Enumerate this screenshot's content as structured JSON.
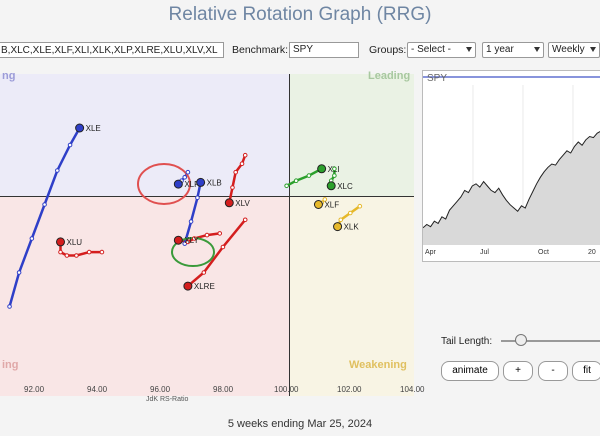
{
  "title": "Relative Rotation Graph (RRG)",
  "toolbar": {
    "symbols_value": "B,XLC,XLE,XLF,XLI,XLK,XLP,XLRE,XLU,XLV,XL",
    "benchmark_label": "Benchmark:",
    "benchmark_value": "SPY",
    "groups_label": "Groups:",
    "groups_value": "- Select -",
    "period_value": "1 year",
    "frequency_value": "Weekly"
  },
  "quadrants": {
    "leading": "Leading",
    "lagging_partial": "ing",
    "improving_partial": "ng",
    "weakening": "Weakening"
  },
  "colors": {
    "leading_bg": "#eaf2e4",
    "improving_bg": "#ecebf8",
    "lagging_bg": "#f9e6e6",
    "weakening_bg": "#f8f4e4",
    "blue": "#2f3fc8",
    "red": "#d41e1e",
    "green": "#2ca02c",
    "yellow": "#e6b82a",
    "circle_red": "#e05050",
    "circle_green": "#3a9a3a"
  },
  "chart_data": {
    "type": "scatter",
    "xlabel": "JdK RS-Ratio",
    "ylabel": "",
    "xlim": [
      91,
      104
    ],
    "x_ticks": [
      "92.00",
      "94.00",
      "96.00",
      "98.00",
      "100.00",
      "102.00",
      "104.00"
    ],
    "series": [
      {
        "name": "XLE",
        "color": "blue",
        "x": [
          91.3,
          91.6,
          92.0,
          92.4,
          92.8,
          93.2,
          93.5
        ],
        "y": [
          93.5,
          95.5,
          97.5,
          99.5,
          101.5,
          103.0,
          104.0
        ]
      },
      {
        "name": "XLF",
        "color": "blue",
        "x": [
          96.9,
          96.8,
          96.7,
          96.6
        ],
        "y": [
          101.4,
          101.1,
          100.9,
          100.7
        ]
      },
      {
        "name": "XLB",
        "color": "blue",
        "x": [
          96.8,
          97.0,
          97.2,
          97.3
        ],
        "y": [
          97.2,
          98.5,
          99.9,
          100.8
        ]
      },
      {
        "name": "XLV",
        "color": "red",
        "x": [
          98.7,
          98.6,
          98.4,
          98.3,
          98.2
        ],
        "y": [
          102.4,
          101.9,
          101.4,
          100.5,
          99.6
        ]
      },
      {
        "name": "XLI",
        "color": "green",
        "x": [
          100.0,
          100.3,
          100.7,
          101.1
        ],
        "y": [
          100.6,
          100.9,
          101.2,
          101.6
        ]
      },
      {
        "name": "XLC",
        "color": "green",
        "x": [
          101.5,
          101.5,
          101.4,
          101.4
        ],
        "y": [
          101.6,
          101.2,
          100.9,
          100.6
        ]
      },
      {
        "name": "XLF",
        "color": "yellow",
        "x": [
          101.2,
          101.1,
          101.0
        ],
        "y": [
          99.8,
          99.6,
          99.5
        ]
      },
      {
        "name": "XLK",
        "color": "yellow",
        "x": [
          102.3,
          102.0,
          101.7,
          101.6
        ],
        "y": [
          99.4,
          99.0,
          98.6,
          98.2
        ]
      },
      {
        "name": "XLU",
        "color": "red",
        "x": [
          94.2,
          93.8,
          93.4,
          93.1,
          92.9,
          92.9
        ],
        "y": [
          96.7,
          96.7,
          96.5,
          96.5,
          96.7,
          97.3
        ]
      },
      {
        "name": "XLY",
        "color": "red",
        "x": [
          97.9,
          97.5,
          97.1,
          96.9,
          96.6
        ],
        "y": [
          97.8,
          97.7,
          97.5,
          97.3,
          97.4
        ]
      },
      {
        "name": "XLRE",
        "color": "red",
        "x": [
          98.7,
          98.0,
          97.4,
          96.9
        ],
        "y": [
          98.6,
          97.0,
          95.5,
          94.7
        ]
      }
    ],
    "spy_series": {
      "label": "SPY",
      "x_ticks": [
        "Apr",
        "Jul",
        "Oct",
        "20"
      ],
      "values": [
        0.12,
        0.15,
        0.13,
        0.18,
        0.16,
        0.22,
        0.2,
        0.28,
        0.32,
        0.36,
        0.4,
        0.46,
        0.44,
        0.5,
        0.52,
        0.49,
        0.54,
        0.5,
        0.46,
        0.44,
        0.48,
        0.42,
        0.37,
        0.33,
        0.3,
        0.27,
        0.32,
        0.3,
        0.38,
        0.45,
        0.52,
        0.58,
        0.63,
        0.67,
        0.7,
        0.69,
        0.74,
        0.78,
        0.82,
        0.8,
        0.86,
        0.9,
        0.87,
        0.92,
        0.95,
        0.94,
        0.98,
        1.0
      ]
    }
  },
  "controls": {
    "tail_length_label": "Tail Length:",
    "animate_label": "animate",
    "plus_label": "+",
    "minus_label": "-",
    "fit_label": "fit"
  },
  "footer": "5 weeks ending Mar 25, 2024"
}
